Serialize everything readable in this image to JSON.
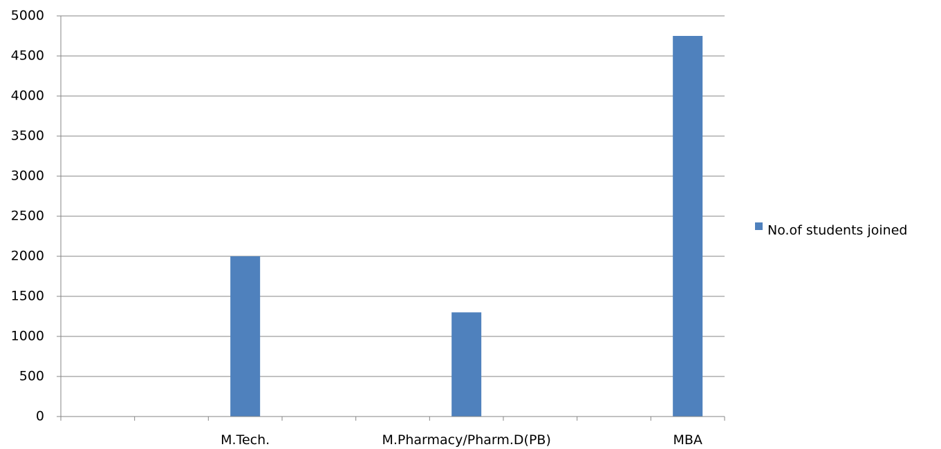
{
  "chart_data": {
    "type": "bar",
    "categories": [
      "",
      "",
      "M.Tech.",
      "",
      "",
      "M.Pharmacy/Pharm.D(PB)",
      "",
      "",
      "MBA"
    ],
    "series": [
      {
        "name": "No.of students joined",
        "values": [
          null,
          null,
          2000,
          null,
          null,
          1300,
          null,
          null,
          4750
        ],
        "color": "#4F81BD"
      }
    ],
    "title": "",
    "xlabel": "",
    "ylabel": "",
    "ylim": [
      0,
      5000
    ],
    "yticks": [
      0,
      500,
      1000,
      1500,
      2000,
      2500,
      3000,
      3500,
      4000,
      4500,
      5000
    ],
    "grid": "horizontal",
    "legend": {
      "position": "right",
      "entries": [
        "No.of students joined"
      ]
    },
    "colors": {
      "bar": "#4F81BD",
      "grid": "#868686",
      "axis": "#868686"
    }
  }
}
